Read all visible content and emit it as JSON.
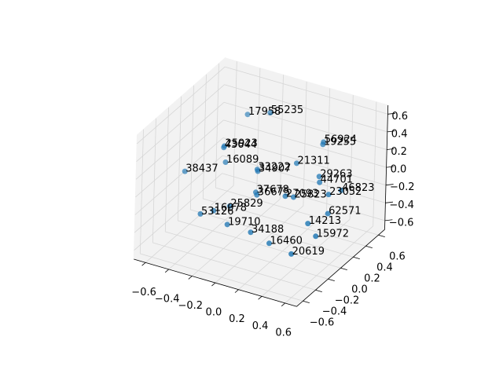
{
  "chart_data": {
    "type": "scatter3d",
    "color": "#1f77b4",
    "grid": true,
    "labels": [
      "17958",
      "55235",
      "56924",
      "19255",
      "25923",
      "43644",
      "16089",
      "38437",
      "33222",
      "34907",
      "21311",
      "29263",
      "44701",
      "46823",
      "23052",
      "37678",
      "36675",
      "27093",
      "25823",
      "25829",
      "16078",
      "53126",
      "19710",
      "62571",
      "14213",
      "34188",
      "15972",
      "16460",
      "20619"
    ],
    "x": [
      -0.26,
      -0.12,
      0.3,
      0.3,
      -0.33,
      -0.33,
      -0.28,
      -0.52,
      -0.06,
      -0.05,
      0.18,
      0.36,
      0.38,
      0.54,
      0.47,
      -0.01,
      0.01,
      0.19,
      0.25,
      -0.14,
      -0.23,
      -0.31,
      -0.11,
      0.51,
      0.41,
      0.06,
      0.49,
      0.21,
      0.38
    ],
    "y": [
      0.25,
      0.35,
      0.43,
      0.42,
      0.02,
      0.01,
      -0.05,
      -0.25,
      0.05,
      0.04,
      0.23,
      0.26,
      0.23,
      0.28,
      0.21,
      -0.06,
      -0.08,
      0.04,
      0.06,
      -0.23,
      -0.32,
      -0.38,
      -0.32,
      0.13,
      0.0,
      -0.26,
      -0.02,
      -0.24,
      -0.2
    ],
    "z": [
      0.51,
      0.52,
      0.3,
      0.28,
      0.27,
      0.26,
      0.15,
      0.08,
      0.09,
      0.08,
      0.14,
      0.04,
      0,
      -0.06,
      -0.09,
      -0.08,
      -0.09,
      -0.11,
      -0.11,
      -0.18,
      -0.21,
      -0.24,
      -0.32,
      -0.24,
      -0.31,
      -0.38,
      -0.41,
      -0.46,
      -0.54
    ],
    "xlim": [
      -0.7,
      0.7
    ],
    "ylim": [
      -0.7,
      0.7
    ],
    "zlim": [
      -0.7,
      0.7
    ],
    "xticks": [
      {
        "value": -0.6,
        "label": "−0.6"
      },
      {
        "value": -0.4,
        "label": "−0.4"
      },
      {
        "value": -0.2,
        "label": "−0.2"
      },
      {
        "value": 0,
        "label": "0.0"
      },
      0.2,
      0.4,
      0.6
    ],
    "yticks": [
      {
        "value": -0.6,
        "label": "−0.6"
      },
      {
        "value": -0.4,
        "label": "−0.4"
      },
      {
        "value": -0.2,
        "label": "−0.2"
      },
      {
        "value": 0,
        "label": "0.0"
      },
      0.2,
      0.4,
      0.6
    ],
    "zticks": [
      {
        "value": -0.6,
        "label": "−0.6"
      },
      {
        "value": -0.4,
        "label": "−0.4"
      },
      {
        "value": -0.2,
        "label": "−0.2"
      },
      {
        "value": 0,
        "label": "0.0"
      },
      0.2,
      0.4,
      0.6
    ]
  }
}
